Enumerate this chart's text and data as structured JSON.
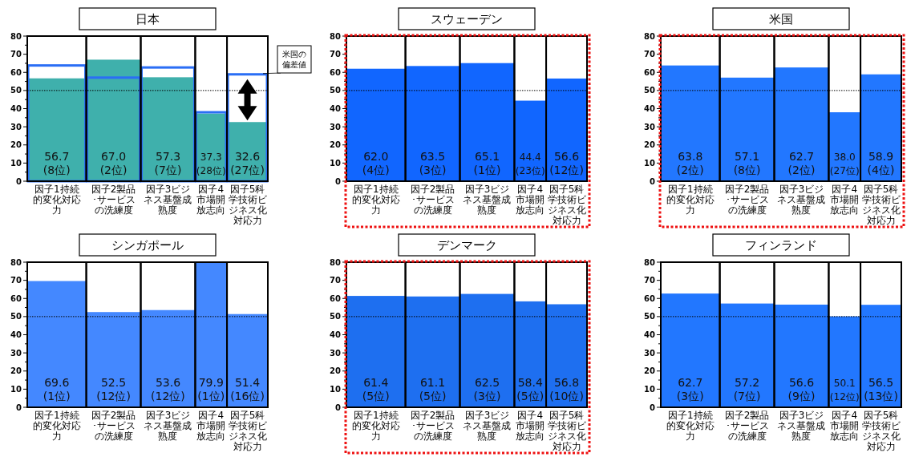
{
  "chart_data": [
    {
      "type": "bar",
      "title": "日本",
      "categories": [
        "因子1持続的変化対応力",
        "因子2製品･サービスの洗練度",
        "因子3ビジネス基盤成熟度",
        "因子4市場開放志向",
        "因子5科学技術ビジネス化対応力"
      ],
      "ylim": [
        0,
        80
      ],
      "yticks": [
        0,
        {
          "value": 5,
          "label": null
        },
        10,
        {
          "value": 15,
          "label": null
        },
        20,
        {
          "value": 25,
          "label": null
        },
        30,
        {
          "value": 35,
          "label": null
        },
        40,
        {
          "value": 45,
          "label": null
        },
        50,
        {
          "value": 55,
          "label": null
        },
        60,
        {
          "value": 65,
          "label": null
        },
        70,
        {
          "value": 75,
          "label": null
        },
        80
      ],
      "ref_lines": [
        {
          "axis": "y",
          "value": 50,
          "line_style": "dotted",
          "color": "#000000"
        }
      ],
      "series": [
        {
          "color": "#3fb0ac",
          "values": [
            56.7,
            67.0,
            57.3,
            37.3,
            32.6
          ],
          "value_labels": [
            "56.7\n(8位)",
            "67.0\n(2位)",
            "57.3\n(7位)",
            "37.3\n(28位)",
            "32.6\n(27位)"
          ]
        },
        {
          "name": "米国の偏差値",
          "color": "#2a6ef5",
          "values": [
            63.8,
            57.1,
            62.7,
            38.0,
            58.9
          ]
        }
      ]
    },
    {
      "type": "bar",
      "title": "スウェーデン",
      "categories": [
        "因子1持続的変化対応力",
        "因子2製品･サービスの洗練度",
        "因子3ビジネス基盤成熟度",
        "因子4市場開放志向",
        "因子5科学技術ビジネス化対応力"
      ],
      "ylim": [
        0,
        80
      ],
      "yticks": [
        0,
        {
          "value": 5,
          "label": null
        },
        10,
        {
          "value": 15,
          "label": null
        },
        20,
        {
          "value": 25,
          "label": null
        },
        30,
        {
          "value": 35,
          "label": null
        },
        40,
        {
          "value": 45,
          "label": null
        },
        50,
        {
          "value": 55,
          "label": null
        },
        60,
        {
          "value": 65,
          "label": null
        },
        70,
        {
          "value": 75,
          "label": null
        },
        80
      ],
      "ref_lines": [
        {
          "axis": "y",
          "value": 50,
          "line_style": "dotted",
          "color": "#000000"
        }
      ],
      "series": [
        {
          "color": "#1166ff",
          "values": [
            62.0,
            63.5,
            65.1,
            44.4,
            56.6
          ],
          "value_labels": [
            "62.0\n(4位)",
            "63.5\n(3位)",
            "65.1\n(1位)",
            "44.4\n(23位)",
            "56.6\n(12位)"
          ]
        }
      ]
    },
    {
      "type": "bar",
      "title": "米国",
      "categories": [
        "因子1持続的変化対応力",
        "因子2製品･サービスの洗練度",
        "因子3ビジネス基盤成熟度",
        "因子4市場開放志向",
        "因子5科学技術ビジネス化対応力"
      ],
      "ylim": [
        0,
        80
      ],
      "yticks": [
        0,
        {
          "value": 5,
          "label": null
        },
        10,
        {
          "value": 15,
          "label": null
        },
        20,
        {
          "value": 25,
          "label": null
        },
        30,
        {
          "value": 35,
          "label": null
        },
        40,
        {
          "value": 45,
          "label": null
        },
        50,
        {
          "value": 55,
          "label": null
        },
        60,
        {
          "value": 65,
          "label": null
        },
        70,
        {
          "value": 75,
          "label": null
        },
        80
      ],
      "ref_lines": [
        {
          "axis": "y",
          "value": 50,
          "line_style": "dotted",
          "color": "#000000"
        }
      ],
      "series": [
        {
          "color": "#2277ff",
          "values": [
            63.8,
            57.1,
            62.7,
            38.0,
            58.9
          ],
          "value_labels": [
            "63.8\n(2位)",
            "57.1\n(8位)",
            "62.7\n(2位)",
            "38.0\n(27位)",
            "58.9\n(4位)"
          ]
        }
      ]
    },
    {
      "type": "bar",
      "title": "シンガポール",
      "categories": [
        "因子1持続的変化対応力",
        "因子2製品･サービスの洗練度",
        "因子3ビジネス基盤成熟度",
        "因子4市場開放志向",
        "因子5科学技術ビジネス化対応力"
      ],
      "ylim": [
        0,
        80
      ],
      "yticks": [
        0,
        {
          "value": 5,
          "label": null
        },
        10,
        {
          "value": 15,
          "label": null
        },
        20,
        {
          "value": 25,
          "label": null
        },
        30,
        {
          "value": 35,
          "label": null
        },
        40,
        {
          "value": 45,
          "label": null
        },
        50,
        {
          "value": 55,
          "label": null
        },
        60,
        {
          "value": 65,
          "label": null
        },
        70,
        {
          "value": 75,
          "label": null
        },
        80
      ],
      "ref_lines": [
        {
          "axis": "y",
          "value": 50,
          "line_style": "dotted",
          "color": "#000000"
        }
      ],
      "series": [
        {
          "color": "#4488ff",
          "values": [
            69.6,
            52.5,
            53.6,
            79.9,
            51.4
          ],
          "value_labels": [
            "69.6\n(1位)",
            "52.5\n(12位)",
            "53.6\n(12位)",
            "79.9\n(1位)",
            "51.4\n(16位)"
          ]
        }
      ]
    },
    {
      "type": "bar",
      "title": "デンマーク",
      "categories": [
        "因子1持続的変化対応力",
        "因子2製品･サービスの洗練度",
        "因子3ビジネス基盤成熟度",
        "因子4市場開放志向",
        "因子5科学技術ビジネス化対応力"
      ],
      "ylim": [
        0,
        80
      ],
      "yticks": [
        0,
        {
          "value": 5,
          "label": null
        },
        10,
        {
          "value": 15,
          "label": null
        },
        20,
        {
          "value": 25,
          "label": null
        },
        30,
        {
          "value": 35,
          "label": null
        },
        40,
        {
          "value": 45,
          "label": null
        },
        50,
        {
          "value": 55,
          "label": null
        },
        60,
        {
          "value": 65,
          "label": null
        },
        70,
        {
          "value": 75,
          "label": null
        },
        80
      ],
      "ref_lines": [
        {
          "axis": "y",
          "value": 50,
          "line_style": "dotted",
          "color": "#000000"
        }
      ],
      "series": [
        {
          "color": "#1e6ff0",
          "values": [
            61.4,
            61.1,
            62.5,
            58.4,
            56.8
          ],
          "value_labels": [
            "61.4\n(5位)",
            "61.1\n(5位)",
            "62.5\n(3位)",
            "58.4\n(5位)",
            "56.8\n(10位)"
          ]
        }
      ]
    },
    {
      "type": "bar",
      "title": "フィンランド",
      "categories": [
        "因子1持続的変化対応力",
        "因子2製品･サービスの洗練度",
        "因子3ビジネス基盤成熟度",
        "因子4市場開放志向",
        "因子5科学技術ビジネス化対応力"
      ],
      "ylim": [
        0,
        80
      ],
      "yticks": [
        0,
        {
          "value": 5,
          "label": null
        },
        10,
        {
          "value": 15,
          "label": null
        },
        20,
        {
          "value": 25,
          "label": null
        },
        30,
        {
          "value": 35,
          "label": null
        },
        40,
        {
          "value": 45,
          "label": null
        },
        50,
        {
          "value": 55,
          "label": null
        },
        60,
        {
          "value": 65,
          "label": null
        },
        70,
        {
          "value": 75,
          "label": null
        },
        80
      ],
      "ref_lines": [
        {
          "axis": "y",
          "value": 50,
          "line_style": "dotted",
          "color": "#000000"
        }
      ],
      "series": [
        {
          "color": "#2277ff",
          "values": [
            62.7,
            57.2,
            56.6,
            50.1,
            56.5
          ],
          "value_labels": [
            "62.7\n(3位)",
            "57.2\n(7位)",
            "56.6\n(9位)",
            "50.1\n(12位)",
            "56.5\n(13位)"
          ]
        }
      ]
    }
  ]
}
